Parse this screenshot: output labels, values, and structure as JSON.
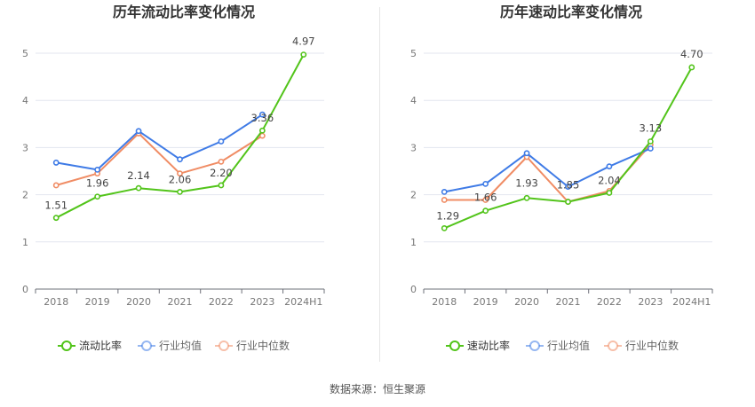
{
  "colors": {
    "main": "#52c41a",
    "avg": "#3f7be6",
    "median": "#f08c64"
  },
  "legend_icon": "circle-line-icon",
  "source_text": "数据来源：恒生聚源",
  "chart_data": [
    {
      "type": "line",
      "title": "历年流动比率变化情况",
      "categories": [
        "2018",
        "2019",
        "2020",
        "2021",
        "2022",
        "2023",
        "2024H1"
      ],
      "ylim": [
        0,
        5
      ],
      "yticks": [
        "0",
        "1",
        "2",
        "3",
        "4",
        "5"
      ],
      "grid": true,
      "legend_position": "bottom",
      "series": [
        {
          "name": "流动比率",
          "color_key": "main",
          "values": [
            1.51,
            1.96,
            2.14,
            2.06,
            2.2,
            3.36,
            4.97
          ],
          "labels": [
            "1.51",
            "1.96",
            "2.14",
            "2.06",
            "2.20",
            "3.36",
            "4.97"
          ]
        },
        {
          "name": "行业均值",
          "color_key": "avg",
          "values": [
            2.68,
            2.53,
            3.35,
            2.75,
            3.13,
            3.7,
            null
          ]
        },
        {
          "name": "行业中位数",
          "color_key": "median",
          "values": [
            2.2,
            2.45,
            3.3,
            2.45,
            2.7,
            3.25,
            null
          ]
        }
      ]
    },
    {
      "type": "line",
      "title": "历年速动比率变化情况",
      "categories": [
        "2018",
        "2019",
        "2020",
        "2021",
        "2022",
        "2023",
        "2024H1"
      ],
      "ylim": [
        0,
        5
      ],
      "yticks": [
        "0",
        "1",
        "2",
        "3",
        "4",
        "5"
      ],
      "grid": true,
      "legend_position": "bottom",
      "series": [
        {
          "name": "速动比率",
          "color_key": "main",
          "values": [
            1.29,
            1.66,
            1.93,
            1.85,
            2.04,
            3.13,
            4.7
          ],
          "labels": [
            "1.29",
            "1.66",
            "1.93",
            "1.85",
            "2.04",
            "3.13",
            "4.70"
          ]
        },
        {
          "name": "行业均值",
          "color_key": "avg",
          "values": [
            2.06,
            2.23,
            2.88,
            2.17,
            2.6,
            2.98,
            null
          ]
        },
        {
          "name": "行业中位数",
          "color_key": "median",
          "values": [
            1.89,
            1.89,
            2.8,
            1.85,
            2.08,
            3.06,
            null
          ]
        }
      ]
    }
  ]
}
